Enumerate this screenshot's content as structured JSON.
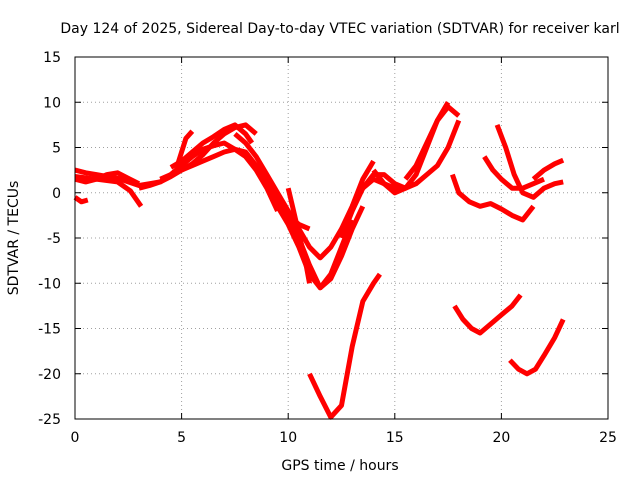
{
  "chart_data": {
    "type": "scatter",
    "title": "Day 124 of 2025, Sidereal Day-to-day VTEC variation (SDTVAR) for receiver karl",
    "xlabel": "GPS time / hours",
    "ylabel": "SDTVAR / TECUs",
    "xlim": [
      0,
      25
    ],
    "ylim": [
      -25,
      15
    ],
    "xticks": [
      0,
      5,
      10,
      15,
      20,
      25
    ],
    "yticks": [
      -25,
      -20,
      -15,
      -10,
      -5,
      0,
      5,
      10,
      15
    ],
    "grid": true,
    "marker_color": "#ff0000",
    "series": [
      {
        "name": "s1",
        "x": [
          0,
          0.5,
          1,
          1.5,
          2,
          2.5,
          3,
          3.5,
          4,
          4.5,
          5
        ],
        "y": [
          2.5,
          2.2,
          2,
          1.8,
          1.6,
          1.2,
          0.8,
          1,
          1.2,
          2,
          3
        ]
      },
      {
        "name": "s2",
        "x": [
          0,
          0.5,
          1,
          1.5,
          2,
          2.5,
          3
        ],
        "y": [
          1.5,
          1.2,
          1.5,
          2,
          2.2,
          1.6,
          1
        ]
      },
      {
        "name": "s3",
        "x": [
          0,
          0.3,
          0.6
        ],
        "y": [
          -0.5,
          -1,
          -0.8
        ]
      },
      {
        "name": "s4",
        "x": [
          0,
          1,
          2,
          2.6,
          3.1
        ],
        "y": [
          1.8,
          1.5,
          1.2,
          0.2,
          -1.5
        ]
      },
      {
        "name": "s5",
        "x": [
          3,
          3.5,
          4,
          4.5,
          5,
          5.5,
          6,
          6.5,
          7,
          7.5,
          8,
          8.5
        ],
        "y": [
          0.5,
          0.8,
          1.2,
          1.8,
          2.5,
          3.2,
          4.2,
          5.5,
          6.5,
          7.2,
          7.5,
          6.5
        ]
      },
      {
        "name": "s6",
        "x": [
          4.5,
          5,
          5.5,
          6,
          6.5,
          7,
          7.5,
          8,
          8.3
        ],
        "y": [
          2.8,
          3.5,
          4.5,
          5.5,
          6.2,
          7,
          7.5,
          6.5,
          5.5
        ]
      },
      {
        "name": "s7",
        "x": [
          4,
          4.5,
          5,
          5.5,
          6,
          6.5,
          7,
          7.5,
          8,
          8.5,
          9,
          9.5
        ],
        "y": [
          1.5,
          2,
          3,
          4,
          4.8,
          5.2,
          5.5,
          4.8,
          4,
          2.5,
          0.5,
          -2
        ]
      },
      {
        "name": "s8",
        "x": [
          5,
          5.5,
          6,
          6.5,
          7,
          7.5,
          8,
          8.5,
          9,
          9.3
        ],
        "y": [
          2.5,
          3,
          3.5,
          4,
          4.5,
          4.8,
          4.5,
          3,
          1,
          -0.5
        ]
      },
      {
        "name": "s9",
        "x": [
          4.8,
          5,
          5.2,
          5.5
        ],
        "y": [
          3,
          4.5,
          6,
          6.8
        ]
      },
      {
        "name": "s10",
        "x": [
          8,
          8.5,
          9,
          9.5,
          10,
          10.5,
          11,
          11.5,
          12,
          12.5,
          13
        ],
        "y": [
          4,
          3,
          1,
          -1.5,
          -3.5,
          -6,
          -9,
          -10.5,
          -9,
          -6,
          -3
        ]
      },
      {
        "name": "s11",
        "x": [
          8.5,
          9,
          9.5,
          10,
          10.5,
          11,
          11.5,
          12,
          12.5,
          13,
          13.5
        ],
        "y": [
          3,
          1.5,
          -0.5,
          -2.5,
          -5,
          -8,
          -10.5,
          -9.5,
          -7,
          -4,
          -1.5
        ]
      },
      {
        "name": "s12",
        "x": [
          7.5,
          8,
          8.5,
          9,
          9.5,
          10,
          10.5,
          11,
          11.5,
          12,
          12.5,
          13,
          13.5,
          14
        ],
        "y": [
          6.5,
          5.5,
          4,
          2,
          0,
          -2,
          -4,
          -6,
          -7.2,
          -6,
          -4,
          -1.5,
          1.5,
          3.5
        ]
      },
      {
        "name": "s13",
        "x": [
          9,
          9.5,
          10,
          10.5,
          11
        ],
        "y": [
          1,
          -1,
          -2.5,
          -3.5,
          -4
        ]
      },
      {
        "name": "s14",
        "x": [
          10,
          10.2,
          10.4,
          10.6,
          10.8,
          11
        ],
        "y": [
          0.5,
          -1.5,
          -3.5,
          -5.5,
          -7.5,
          -10
        ]
      },
      {
        "name": "s15",
        "x": [
          12.5,
          13,
          13.5,
          14,
          14.5,
          15,
          15.5
        ],
        "y": [
          -5,
          -2,
          0.5,
          2,
          2,
          1,
          0.5
        ]
      },
      {
        "name": "s16",
        "x": [
          13,
          13.5,
          14,
          14.5,
          15,
          15.5,
          16,
          16.5,
          17,
          17.5,
          18
        ],
        "y": [
          -1.5,
          0.5,
          1.5,
          1,
          0.5,
          0.5,
          1,
          2,
          3,
          5,
          8
        ]
      },
      {
        "name": "s17",
        "x": [
          14,
          14.5,
          15,
          15.5,
          16,
          16.5,
          17,
          17.5
        ],
        "y": [
          2.5,
          1,
          0,
          0.5,
          2,
          5,
          8,
          10
        ]
      },
      {
        "name": "s18",
        "x": [
          15.5,
          16,
          16.5,
          17,
          17.5,
          18
        ],
        "y": [
          1.5,
          3,
          5.5,
          8,
          9.5,
          8.5
        ]
      },
      {
        "name": "s19",
        "x": [
          11,
          11.5,
          12,
          12.5,
          13,
          13.5,
          14,
          14.3
        ],
        "y": [
          -20,
          -22.5,
          -24.8,
          -23.5,
          -17,
          -12,
          -10,
          -9
        ]
      },
      {
        "name": "s20",
        "x": [
          17.7,
          18,
          18.5,
          19,
          19.5,
          20,
          20.5,
          21,
          21.5
        ],
        "y": [
          2,
          0,
          -1,
          -1.5,
          -1.2,
          -1.8,
          -2.5,
          -3,
          -1.5
        ]
      },
      {
        "name": "s21",
        "x": [
          17.8,
          18.2,
          18.6,
          19,
          19.5,
          20,
          20.5,
          20.9
        ],
        "y": [
          -12.5,
          -14,
          -15,
          -15.5,
          -14.5,
          -13.5,
          -12.5,
          -11.3
        ]
      },
      {
        "name": "s22",
        "x": [
          19.2,
          19.6,
          20,
          20.5,
          21,
          21.5,
          22
        ],
        "y": [
          4,
          2.5,
          1.5,
          0.5,
          0.5,
          1,
          1.5
        ]
      },
      {
        "name": "s23",
        "x": [
          19.8,
          20.2,
          20.6,
          21,
          21.5,
          22,
          22.5,
          22.9
        ],
        "y": [
          7.5,
          5,
          2,
          0,
          -0.5,
          0.5,
          1,
          1.2
        ]
      },
      {
        "name": "s24",
        "x": [
          21.5,
          22,
          22.5,
          22.9
        ],
        "y": [
          1.5,
          2.5,
          3.2,
          3.6
        ]
      },
      {
        "name": "s25",
        "x": [
          20.4,
          20.8,
          21.2,
          21.6,
          22,
          22.5,
          22.9
        ],
        "y": [
          -18.5,
          -19.5,
          -20,
          -19.5,
          -18,
          -16,
          -14
        ]
      }
    ]
  }
}
